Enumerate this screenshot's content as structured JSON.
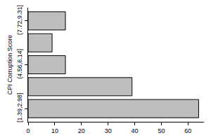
{
  "chart_data": {
    "type": "bar",
    "orientation": "horizontal",
    "categories": [
      "[1.39,2.98]",
      null,
      "(4.56,6.14]",
      null,
      "(7.72,9.31]"
    ],
    "values": [
      64,
      39,
      14,
      9,
      14
    ],
    "color": "#bebebe",
    "y_label": "CPI Corruption Score",
    "xlim": [
      0,
      66
    ],
    "xticks": [
      0,
      10,
      20,
      30,
      40,
      50,
      60
    ],
    "grid": false
  }
}
